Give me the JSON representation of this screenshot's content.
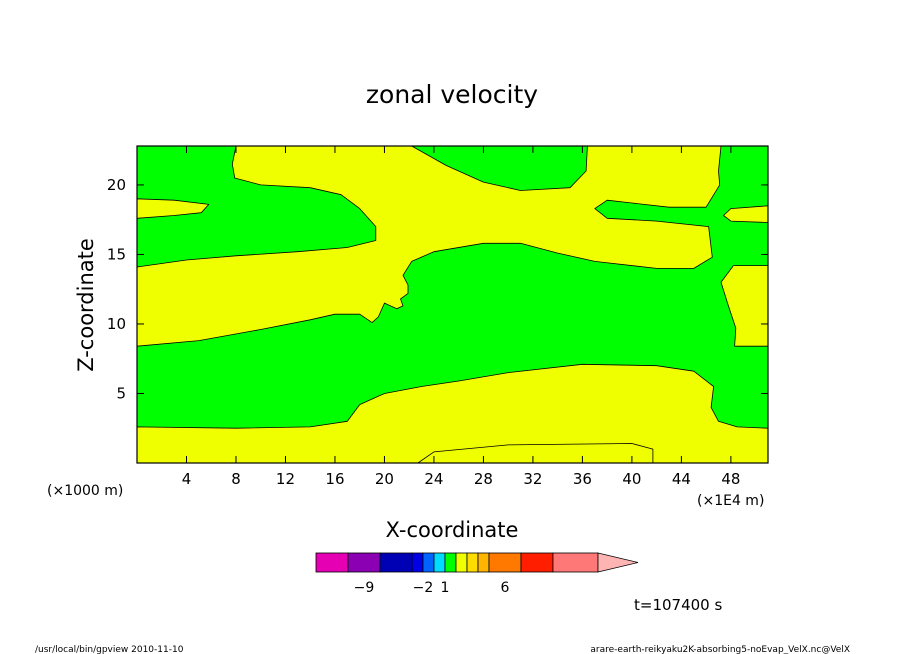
{
  "chart_data": {
    "type": "heatmap",
    "title": "zonal velocity",
    "xlabel": "X-coordinate",
    "ylabel": "Z-coordinate",
    "x_unit_left": "(×1000 m)",
    "x_unit_right": "(×1E4 m)",
    "xlim": [
      0,
      51
    ],
    "ylim": [
      0,
      22.8
    ],
    "x_ticks": [
      4,
      8,
      12,
      16,
      20,
      24,
      28,
      32,
      36,
      40,
      44,
      48
    ],
    "y_ticks": [
      5,
      10,
      15,
      20
    ],
    "background_color": "#00ff00",
    "regions": [
      {
        "level": "positive",
        "color": "#f0ff00",
        "outline": [
          [
            0,
            2.6
          ],
          [
            8,
            2.5
          ],
          [
            14,
            2.6
          ],
          [
            17,
            3
          ],
          [
            18,
            4.2
          ],
          [
            20,
            5
          ],
          [
            23,
            5.5
          ],
          [
            26,
            5.9
          ],
          [
            30,
            6.5
          ],
          [
            36,
            7.1
          ],
          [
            42,
            7
          ],
          [
            45,
            6.6
          ],
          [
            46.6,
            5.5
          ],
          [
            46.4,
            4
          ],
          [
            47,
            3
          ],
          [
            48.5,
            2.6
          ],
          [
            51,
            2.5
          ],
          [
            51,
            0
          ],
          [
            22.7,
            0
          ],
          [
            24,
            0.8
          ],
          [
            30,
            1.3
          ],
          [
            40,
            1.4
          ],
          [
            41.7,
            1
          ],
          [
            41.7,
            0
          ],
          [
            0,
            0
          ]
        ]
      },
      {
        "level": "positive",
        "color": "#f0ff00",
        "outline": [
          [
            0,
            8.4
          ],
          [
            5,
            8.8
          ],
          [
            10,
            9.6
          ],
          [
            14,
            10.3
          ],
          [
            16,
            10.7
          ],
          [
            18,
            10.7
          ],
          [
            19,
            10.1
          ],
          [
            19.5,
            10.5
          ],
          [
            20,
            11.5
          ],
          [
            21,
            11.1
          ],
          [
            21.5,
            11.3
          ],
          [
            21.3,
            11.8
          ],
          [
            21.9,
            12.2
          ],
          [
            21.9,
            12.8
          ],
          [
            21.5,
            13.5
          ],
          [
            22.2,
            14.5
          ],
          [
            24,
            15.2
          ],
          [
            28,
            15.8
          ],
          [
            31,
            15.8
          ],
          [
            34,
            15.1
          ],
          [
            37,
            14.5
          ],
          [
            42,
            14
          ],
          [
            45,
            14
          ],
          [
            46.5,
            14.8
          ],
          [
            46.2,
            17
          ],
          [
            42,
            17.4
          ],
          [
            38,
            17.6
          ],
          [
            37,
            18.3
          ],
          [
            38,
            18.9
          ],
          [
            40,
            18.7
          ],
          [
            43,
            18.4
          ],
          [
            46,
            18.4
          ],
          [
            47.1,
            20
          ],
          [
            47,
            21
          ],
          [
            47.2,
            22.8
          ],
          [
            36.4,
            22.8
          ],
          [
            36.3,
            21
          ],
          [
            35,
            19.8
          ],
          [
            31,
            19.6
          ],
          [
            28,
            20.2
          ],
          [
            25,
            21.4
          ],
          [
            22.2,
            22.8
          ],
          [
            8,
            22.8
          ],
          [
            7.7,
            21.5
          ],
          [
            7.9,
            20.5
          ],
          [
            10,
            20
          ],
          [
            14,
            19.8
          ],
          [
            16.5,
            19.3
          ],
          [
            18,
            18.3
          ],
          [
            19.3,
            17
          ],
          [
            19.3,
            16
          ],
          [
            17,
            15.5
          ],
          [
            13,
            15.2
          ],
          [
            8,
            14.9
          ],
          [
            4,
            14.6
          ],
          [
            0,
            14.1
          ]
        ]
      },
      {
        "level": "positive",
        "color": "#f0ff00",
        "outline": [
          [
            0,
            19
          ],
          [
            3,
            18.9
          ],
          [
            5.8,
            18.6
          ],
          [
            5.2,
            18
          ],
          [
            3,
            17.8
          ],
          [
            0,
            17.6
          ]
        ]
      },
      {
        "level": "positive",
        "color": "#f0ff00",
        "outline": [
          [
            51,
            18.5
          ],
          [
            48,
            18.3
          ],
          [
            47.4,
            17.8
          ],
          [
            48,
            17.4
          ],
          [
            51,
            17.3
          ]
        ]
      },
      {
        "level": "positive",
        "color": "#f0ff00",
        "outline": [
          [
            51,
            14.2
          ],
          [
            48.2,
            14.2
          ],
          [
            47.2,
            13
          ],
          [
            47.8,
            11.3
          ],
          [
            48.4,
            9.7
          ],
          [
            48.3,
            8.4
          ],
          [
            51,
            8.4
          ]
        ]
      }
    ],
    "colorbar": {
      "colors": [
        "#e600b4",
        "#8c00b4",
        "#0000b4",
        "#0000e6",
        "#0064ff",
        "#00dcff",
        "#00ff00",
        "#f0ff00",
        "#ffdc00",
        "#ffb400",
        "#ff7800",
        "#ff1e00",
        "#ff7878",
        "#ffb4b4"
      ],
      "labels": [
        "−9",
        "−2",
        "1",
        "6"
      ]
    },
    "annotation_time": "t=107400 s",
    "footer_left": "/usr/local/bin/gpview  2010-11-10",
    "footer_right": "arare-earth-reikyaku2K-absorbing5-noEvap_VelX.nc@VelX"
  }
}
